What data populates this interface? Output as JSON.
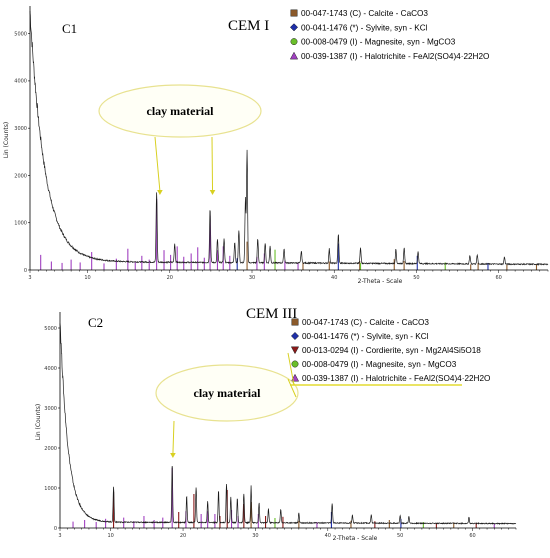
{
  "chart_data": [
    {
      "type": "line",
      "sample_label": "C1",
      "title": "CEM I",
      "xlabel": "2-Theta - Scale",
      "ylabel": "Lin (Counts)",
      "xlim": [
        3,
        66
      ],
      "ylim": [
        0,
        5500
      ],
      "xticks": [
        3,
        10,
        20,
        30,
        40,
        50,
        60
      ],
      "yticks": [
        0,
        1000,
        2000,
        3000,
        4000,
        5000
      ],
      "annotation": "clay material",
      "annotation_targets": [
        18.8,
        25.2
      ],
      "legend": [
        {
          "text": "00-047-1743 (C) - Calcite - CaCO3",
          "color": "#8b5a2b",
          "marker": "square"
        },
        {
          "text": "00-041-1476 (*) - Sylvite, syn - KCl",
          "color": "#1f2fa8",
          "marker": "diamond"
        },
        {
          "text": "00-008-0479 (I) - Magnesite, syn - MgCO3",
          "color": "#6abf2a",
          "marker": "circle"
        },
        {
          "text": "00-039-1387 (I) - Halotrichite - FeAl2(SO4)4·22H2O",
          "color": "#a040c0",
          "marker": "triangle"
        }
      ],
      "background": {
        "base": 60,
        "amp": 5300,
        "decay": 0.55,
        "tail": 120
      },
      "peaks": [
        {
          "x": 18.4,
          "y": 1500
        },
        {
          "x": 20.6,
          "y": 400
        },
        {
          "x": 24.9,
          "y": 1150
        },
        {
          "x": 25.8,
          "y": 500
        },
        {
          "x": 26.6,
          "y": 500
        },
        {
          "x": 27.9,
          "y": 450
        },
        {
          "x": 28.4,
          "y": 700
        },
        {
          "x": 29.2,
          "y": 1350
        },
        {
          "x": 29.4,
          "y": 2350
        },
        {
          "x": 30.7,
          "y": 500
        },
        {
          "x": 31.6,
          "y": 420
        },
        {
          "x": 32.2,
          "y": 350
        },
        {
          "x": 33.9,
          "y": 300
        },
        {
          "x": 36.0,
          "y": 250
        },
        {
          "x": 39.4,
          "y": 300
        },
        {
          "x": 40.5,
          "y": 620
        },
        {
          "x": 43.2,
          "y": 320
        },
        {
          "x": 47.5,
          "y": 300
        },
        {
          "x": 48.5,
          "y": 330
        },
        {
          "x": 50.2,
          "y": 250
        },
        {
          "x": 56.5,
          "y": 180
        },
        {
          "x": 57.4,
          "y": 200
        },
        {
          "x": 60.7,
          "y": 150
        }
      ],
      "sticks": [
        {
          "x": 4.3,
          "y": 320,
          "color": "#a040c0"
        },
        {
          "x": 5.6,
          "y": 180,
          "color": "#a040c0"
        },
        {
          "x": 6.9,
          "y": 150,
          "color": "#a040c0"
        },
        {
          "x": 8.0,
          "y": 220,
          "color": "#a040c0"
        },
        {
          "x": 9.1,
          "y": 160,
          "color": "#a040c0"
        },
        {
          "x": 10.5,
          "y": 380,
          "color": "#a040c0"
        },
        {
          "x": 12.0,
          "y": 140,
          "color": "#a040c0"
        },
        {
          "x": 13.5,
          "y": 240,
          "color": "#a040c0"
        },
        {
          "x": 14.9,
          "y": 450,
          "color": "#a040c0"
        },
        {
          "x": 15.8,
          "y": 180,
          "color": "#a040c0"
        },
        {
          "x": 16.6,
          "y": 300,
          "color": "#a040c0"
        },
        {
          "x": 17.5,
          "y": 220,
          "color": "#a040c0"
        },
        {
          "x": 18.4,
          "y": 1500,
          "color": "#a040c0"
        },
        {
          "x": 19.3,
          "y": 420,
          "color": "#a040c0"
        },
        {
          "x": 20.1,
          "y": 320,
          "color": "#a040c0"
        },
        {
          "x": 20.9,
          "y": 500,
          "color": "#a040c0"
        },
        {
          "x": 21.7,
          "y": 280,
          "color": "#a040c0"
        },
        {
          "x": 22.6,
          "y": 350,
          "color": "#a040c0"
        },
        {
          "x": 23.4,
          "y": 480,
          "color": "#a040c0"
        },
        {
          "x": 24.2,
          "y": 260,
          "color": "#a040c0"
        },
        {
          "x": 24.9,
          "y": 1150,
          "color": "#a040c0"
        },
        {
          "x": 25.8,
          "y": 420,
          "color": "#a040c0"
        },
        {
          "x": 26.5,
          "y": 500,
          "color": "#a040c0"
        },
        {
          "x": 27.3,
          "y": 300,
          "color": "#a040c0"
        },
        {
          "x": 28.2,
          "y": 250,
          "color": "#1f2fa8"
        },
        {
          "x": 29.4,
          "y": 600,
          "color": "#8b5a2b"
        },
        {
          "x": 30.6,
          "y": 280,
          "color": "#a040c0"
        },
        {
          "x": 31.5,
          "y": 350,
          "color": "#a040c0"
        },
        {
          "x": 32.8,
          "y": 430,
          "color": "#6abf2a"
        },
        {
          "x": 34.0,
          "y": 200,
          "color": "#a040c0"
        },
        {
          "x": 35.6,
          "y": 150,
          "color": "#a040c0"
        },
        {
          "x": 36.2,
          "y": 160,
          "color": "#8b5a2b"
        },
        {
          "x": 39.4,
          "y": 180,
          "color": "#8b5a2b"
        },
        {
          "x": 40.5,
          "y": 560,
          "color": "#1f2fa8"
        },
        {
          "x": 43.1,
          "y": 190,
          "color": "#8b5a2b"
        },
        {
          "x": 43.2,
          "y": 150,
          "color": "#6abf2a"
        },
        {
          "x": 47.3,
          "y": 230,
          "color": "#8b5a2b"
        },
        {
          "x": 48.5,
          "y": 190,
          "color": "#8b5a2b"
        },
        {
          "x": 50.1,
          "y": 300,
          "color": "#1f2fa8"
        },
        {
          "x": 53.5,
          "y": 160,
          "color": "#6abf2a"
        },
        {
          "x": 56.6,
          "y": 120,
          "color": "#8b5a2b"
        },
        {
          "x": 57.5,
          "y": 150,
          "color": "#8b5a2b"
        },
        {
          "x": 58.7,
          "y": 150,
          "color": "#1f2fa8"
        },
        {
          "x": 61.0,
          "y": 110,
          "color": "#8b5a2b"
        },
        {
          "x": 64.6,
          "y": 120,
          "color": "#8b5a2b"
        }
      ]
    },
    {
      "type": "line",
      "sample_label": "C2",
      "title": "CEM III",
      "xlabel": "2-Theta - Scale",
      "ylabel": "Lin (Counts)",
      "xlim": [
        3,
        66
      ],
      "ylim": [
        0,
        5300
      ],
      "xticks": [
        3,
        10,
        20,
        30,
        40,
        50,
        60
      ],
      "yticks": [
        0,
        1000,
        2000,
        3000,
        4000,
        5000
      ],
      "annotation": "clay material",
      "annotation_targets": [
        18.6
      ],
      "legend": [
        {
          "text": "00-047-1743 (C) - Calcite - CaCO3",
          "color": "#8b5a2b",
          "marker": "square"
        },
        {
          "text": "00-041-1476 (*) - Sylvite, syn - KCl",
          "color": "#1f2fa8",
          "marker": "diamond"
        },
        {
          "text": "00-013-0294 (I) - Cordierite, syn - Mg2Al4Si5O18",
          "color": "#8b1a1a",
          "marker": "triangle-down"
        },
        {
          "text": "00-008-0479 (I) - Magnesite, syn - MgCO3",
          "color": "#6abf2a",
          "marker": "circle"
        },
        {
          "text": "00-039-1387 (I) - Halotrichite - FeAl2(SO4)4·22H2O",
          "color": "#a040c0",
          "marker": "triangle"
        }
      ],
      "background": {
        "base": 40,
        "amp": 5100,
        "decay": 0.9,
        "tail": 110
      },
      "peaks": [
        {
          "x": 10.4,
          "y": 900
        },
        {
          "x": 18.5,
          "y": 1500
        },
        {
          "x": 20.5,
          "y": 650
        },
        {
          "x": 21.8,
          "y": 900
        },
        {
          "x": 23.4,
          "y": 550
        },
        {
          "x": 24.9,
          "y": 800
        },
        {
          "x": 26.0,
          "y": 1000
        },
        {
          "x": 26.6,
          "y": 650
        },
        {
          "x": 27.5,
          "y": 600
        },
        {
          "x": 28.4,
          "y": 750
        },
        {
          "x": 29.4,
          "y": 900
        },
        {
          "x": 30.5,
          "y": 500
        },
        {
          "x": 31.8,
          "y": 350
        },
        {
          "x": 33.5,
          "y": 350
        },
        {
          "x": 36.0,
          "y": 250
        },
        {
          "x": 40.6,
          "y": 500
        },
        {
          "x": 43.4,
          "y": 200
        },
        {
          "x": 46.0,
          "y": 220
        },
        {
          "x": 50.0,
          "y": 200
        },
        {
          "x": 51.2,
          "y": 180
        },
        {
          "x": 59.5,
          "y": 150
        }
      ],
      "sticks": [
        {
          "x": 4.8,
          "y": 160,
          "color": "#a040c0"
        },
        {
          "x": 6.4,
          "y": 200,
          "color": "#a040c0"
        },
        {
          "x": 8.0,
          "y": 150,
          "color": "#a040c0"
        },
        {
          "x": 9.3,
          "y": 230,
          "color": "#a040c0"
        },
        {
          "x": 10.4,
          "y": 900,
          "color": "#8b1a1a"
        },
        {
          "x": 11.8,
          "y": 260,
          "color": "#a040c0"
        },
        {
          "x": 13.2,
          "y": 170,
          "color": "#a040c0"
        },
        {
          "x": 14.6,
          "y": 300,
          "color": "#a040c0"
        },
        {
          "x": 16.0,
          "y": 200,
          "color": "#a040c0"
        },
        {
          "x": 17.2,
          "y": 260,
          "color": "#a040c0"
        },
        {
          "x": 18.5,
          "y": 1500,
          "color": "#a040c0"
        },
        {
          "x": 19.4,
          "y": 400,
          "color": "#8b1a1a"
        },
        {
          "x": 20.4,
          "y": 420,
          "color": "#a040c0"
        },
        {
          "x": 21.5,
          "y": 850,
          "color": "#8b1a1a"
        },
        {
          "x": 22.5,
          "y": 350,
          "color": "#a040c0"
        },
        {
          "x": 23.4,
          "y": 420,
          "color": "#a040c0"
        },
        {
          "x": 24.4,
          "y": 350,
          "color": "#a040c0"
        },
        {
          "x": 25.1,
          "y": 300,
          "color": "#8b1a1a"
        },
        {
          "x": 26.1,
          "y": 950,
          "color": "#8b1a1a"
        },
        {
          "x": 26.7,
          "y": 450,
          "color": "#a040c0"
        },
        {
          "x": 27.6,
          "y": 300,
          "color": "#a040c0"
        },
        {
          "x": 28.4,
          "y": 600,
          "color": "#8b1a1a"
        },
        {
          "x": 29.4,
          "y": 650,
          "color": "#8b5a2b"
        },
        {
          "x": 30.4,
          "y": 350,
          "color": "#a040c0"
        },
        {
          "x": 31.4,
          "y": 300,
          "color": "#8b1a1a"
        },
        {
          "x": 32.7,
          "y": 250,
          "color": "#6abf2a"
        },
        {
          "x": 33.8,
          "y": 280,
          "color": "#8b1a1a"
        },
        {
          "x": 36.0,
          "y": 180,
          "color": "#8b5a2b"
        },
        {
          "x": 38.5,
          "y": 150,
          "color": "#a040c0"
        },
        {
          "x": 40.5,
          "y": 400,
          "color": "#1f2fa8"
        },
        {
          "x": 43.2,
          "y": 180,
          "color": "#8b5a2b"
        },
        {
          "x": 46.5,
          "y": 170,
          "color": "#8b1a1a"
        },
        {
          "x": 48.5,
          "y": 200,
          "color": "#8b5a2b"
        },
        {
          "x": 50.1,
          "y": 230,
          "color": "#1f2fa8"
        },
        {
          "x": 53.2,
          "y": 150,
          "color": "#6abf2a"
        },
        {
          "x": 55.0,
          "y": 120,
          "color": "#8b1a1a"
        },
        {
          "x": 57.4,
          "y": 140,
          "color": "#8b5a2b"
        },
        {
          "x": 60.5,
          "y": 130,
          "color": "#8b1a1a"
        },
        {
          "x": 63.0,
          "y": 110,
          "color": "#a040c0"
        }
      ]
    }
  ]
}
